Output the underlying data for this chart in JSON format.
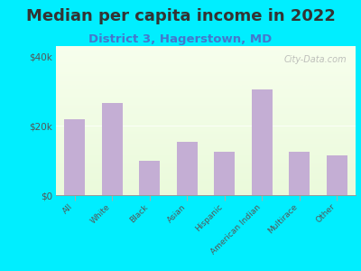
{
  "title": "Median per capita income in 2022",
  "subtitle": "District 3, Hagerstown, MD",
  "categories": [
    "All",
    "White",
    "Black",
    "Asian",
    "Hispanic",
    "American Indian",
    "Multirace",
    "Other"
  ],
  "values": [
    22000,
    26500,
    10000,
    15500,
    12500,
    30500,
    12500,
    11500
  ],
  "bar_color": "#c4aed4",
  "background_outer": "#00eeff",
  "yticks": [
    0,
    20000,
    40000
  ],
  "ytick_labels": [
    "$0",
    "$20k",
    "$40k"
  ],
  "ylim": [
    0,
    43000
  ],
  "title_fontsize": 13,
  "title_color": "#333333",
  "subtitle_fontsize": 9.5,
  "subtitle_color": "#4477cc",
  "watermark": "City-Data.com",
  "bar_width": 0.55
}
